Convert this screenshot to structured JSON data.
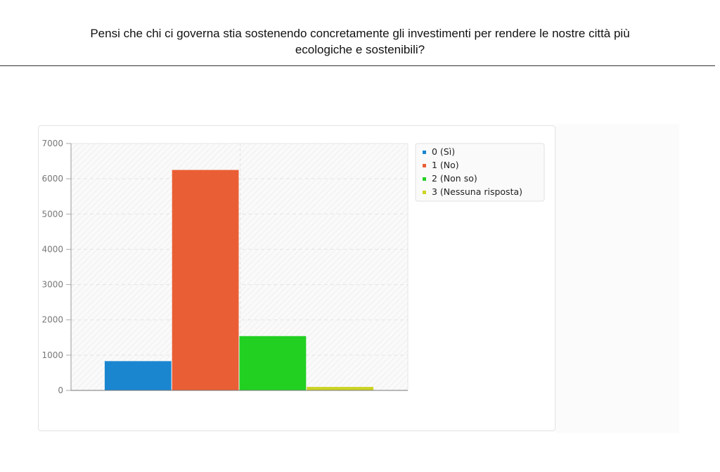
{
  "question": {
    "line1": "Pensi che chi ci governa stia sostenendo concretamente gli investimenti per rendere le nostre città più",
    "line2": "ecologiche e sostenibili?"
  },
  "chart_data": {
    "type": "bar",
    "title": "",
    "xlabel": "",
    "ylabel": "",
    "ylim": [
      0,
      7000
    ],
    "yticks": [
      0,
      1000,
      2000,
      3000,
      4000,
      5000,
      6000,
      7000
    ],
    "grid": true,
    "legend_position": "top-right",
    "series": [
      {
        "name": "0 (Sì)",
        "values": [
          830
        ],
        "color": "#1a86d0"
      },
      {
        "name": "1 (No)",
        "values": [
          6250
        ],
        "color": "#e95e34"
      },
      {
        "name": "2 (Non so)",
        "values": [
          1540
        ],
        "color": "#22d022"
      },
      {
        "name": "3 (Nessuna risposta)",
        "values": [
          100
        ],
        "color": "#ccd425"
      }
    ]
  }
}
